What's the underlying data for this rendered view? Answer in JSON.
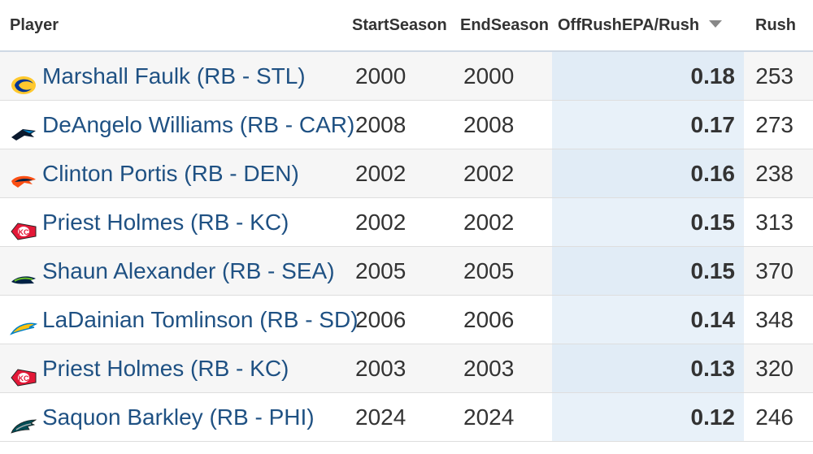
{
  "columns": {
    "player": "Player",
    "start_season": "StartSeason",
    "end_season": "EndSeason",
    "epa": "OffRushEPA/Rush",
    "rush": "Rush"
  },
  "rows": [
    {
      "player": "Marshall Faulk (RB - STL)",
      "team_logo": "rams-logo-icon",
      "start": "2000",
      "end": "2000",
      "epa": "0.18",
      "rush": "253"
    },
    {
      "player": "DeAngelo Williams (RB - CAR)",
      "team_logo": "panthers-logo-icon",
      "start": "2008",
      "end": "2008",
      "epa": "0.17",
      "rush": "273"
    },
    {
      "player": "Clinton Portis (RB - DEN)",
      "team_logo": "broncos-logo-icon",
      "start": "2002",
      "end": "2002",
      "epa": "0.16",
      "rush": "238"
    },
    {
      "player": "Priest Holmes (RB - KC)",
      "team_logo": "chiefs-logo-icon",
      "start": "2002",
      "end": "2002",
      "epa": "0.15",
      "rush": "313"
    },
    {
      "player": "Shaun Alexander (RB - SEA)",
      "team_logo": "seahawks-logo-icon",
      "start": "2005",
      "end": "2005",
      "epa": "0.15",
      "rush": "370"
    },
    {
      "player": "LaDainian Tomlinson (RB - SD)",
      "team_logo": "chargers-logo-icon",
      "start": "2006",
      "end": "2006",
      "epa": "0.14",
      "rush": "348"
    },
    {
      "player": "Priest Holmes (RB - KC)",
      "team_logo": "chiefs-logo-icon",
      "start": "2003",
      "end": "2003",
      "epa": "0.13",
      "rush": "320"
    },
    {
      "player": "Saquon Barkley (RB - PHI)",
      "team_logo": "eagles-logo-icon",
      "start": "2024",
      "end": "2024",
      "epa": "0.12",
      "rush": "246"
    }
  ],
  "sorted_column_color": "#e8f1f9",
  "link_color": "#1f5183"
}
